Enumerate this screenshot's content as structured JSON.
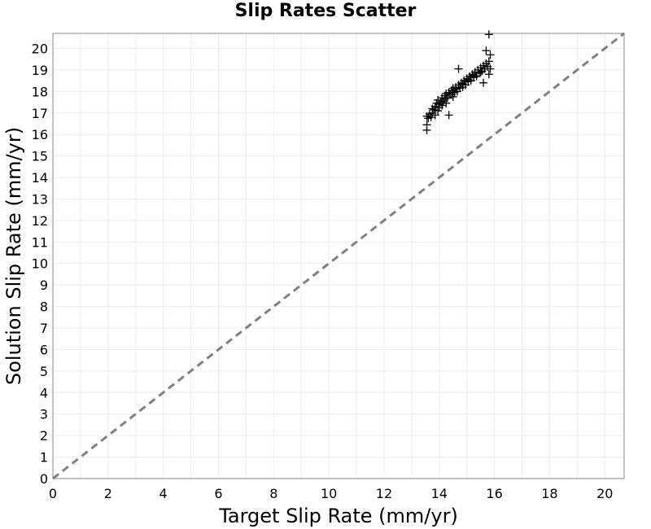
{
  "chart_data": {
    "type": "scatter",
    "title": "Slip Rates Scatter",
    "xlabel": "Target Slip Rate (mm/yr)",
    "ylabel": "Solution Slip Rate (mm/yr)",
    "xlim": [
      0,
      20.7
    ],
    "ylim": [
      0,
      20.7
    ],
    "x_ticks": [
      0,
      2,
      4,
      6,
      8,
      10,
      12,
      14,
      16,
      18,
      20
    ],
    "y_ticks": [
      0,
      1,
      2,
      3,
      4,
      5,
      6,
      7,
      8,
      9,
      10,
      11,
      12,
      13,
      14,
      15,
      16,
      17,
      18,
      19,
      20
    ],
    "grid": true,
    "marker": "+",
    "marker_color": "#000000",
    "reference_line": {
      "style": "dashed",
      "color": "#808080",
      "from": [
        0,
        0
      ],
      "to": [
        20.7,
        20.7
      ]
    },
    "series": [
      {
        "points": [
          [
            13.55,
            16.2
          ],
          [
            13.55,
            16.45
          ],
          [
            13.55,
            16.85
          ],
          [
            13.65,
            16.95
          ],
          [
            13.7,
            16.8
          ],
          [
            13.75,
            17.0
          ],
          [
            13.8,
            17.15
          ],
          [
            13.85,
            16.9
          ],
          [
            13.85,
            17.3
          ],
          [
            13.9,
            17.45
          ],
          [
            13.95,
            17.1
          ],
          [
            13.95,
            17.6
          ],
          [
            14.0,
            17.25
          ],
          [
            14.05,
            17.5
          ],
          [
            14.1,
            17.35
          ],
          [
            14.1,
            17.7
          ],
          [
            14.15,
            17.55
          ],
          [
            14.2,
            17.8
          ],
          [
            14.25,
            17.45
          ],
          [
            14.25,
            17.9
          ],
          [
            14.3,
            17.7
          ],
          [
            14.35,
            17.95
          ],
          [
            14.35,
            16.9
          ],
          [
            14.4,
            17.85
          ],
          [
            14.45,
            18.05
          ],
          [
            14.5,
            17.75
          ],
          [
            14.5,
            18.15
          ],
          [
            14.55,
            17.95
          ],
          [
            14.6,
            18.2
          ],
          [
            14.65,
            18.0
          ],
          [
            14.7,
            18.3
          ],
          [
            14.7,
            19.05
          ],
          [
            14.75,
            18.15
          ],
          [
            14.8,
            18.4
          ],
          [
            14.85,
            18.2
          ],
          [
            14.9,
            18.5
          ],
          [
            14.95,
            18.3
          ],
          [
            15.0,
            18.6
          ],
          [
            15.05,
            18.45
          ],
          [
            15.1,
            18.7
          ],
          [
            15.15,
            18.5
          ],
          [
            15.2,
            18.8
          ],
          [
            15.25,
            18.65
          ],
          [
            15.3,
            18.9
          ],
          [
            15.35,
            18.7
          ],
          [
            15.4,
            19.0
          ],
          [
            15.45,
            18.85
          ],
          [
            15.5,
            19.1
          ],
          [
            15.55,
            18.95
          ],
          [
            15.6,
            19.2
          ],
          [
            15.6,
            18.4
          ],
          [
            15.65,
            19.05
          ],
          [
            15.7,
            19.3
          ],
          [
            15.7,
            19.9
          ],
          [
            15.75,
            19.15
          ],
          [
            15.8,
            19.4
          ],
          [
            15.8,
            18.8
          ],
          [
            15.85,
            19.7
          ],
          [
            15.85,
            19.05
          ],
          [
            15.8,
            20.65
          ],
          [
            13.6,
            16.75
          ],
          [
            13.75,
            17.2
          ],
          [
            14.0,
            17.4
          ],
          [
            14.2,
            17.65
          ],
          [
            14.45,
            17.85
          ],
          [
            14.6,
            18.1
          ],
          [
            14.85,
            18.35
          ],
          [
            15.05,
            18.55
          ],
          [
            15.25,
            18.75
          ],
          [
            15.5,
            18.9
          ]
        ]
      }
    ]
  }
}
